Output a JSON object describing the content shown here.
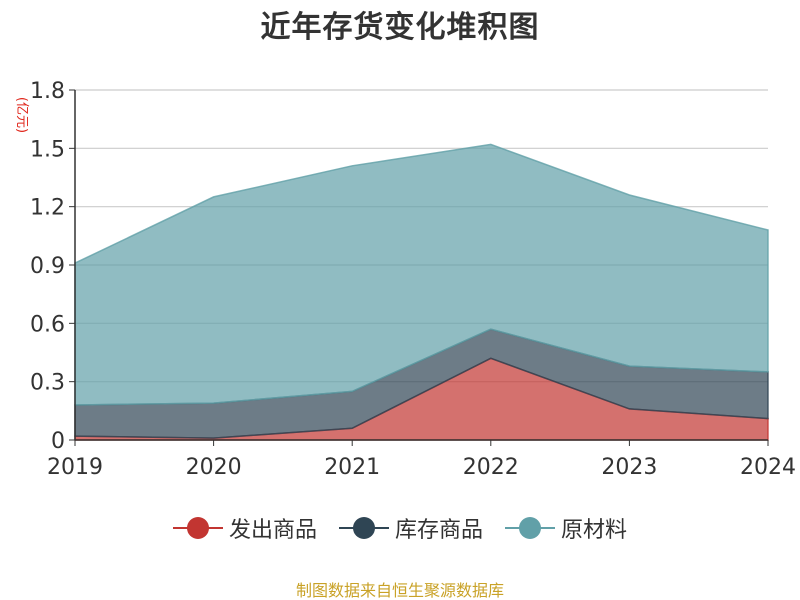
{
  "title": "近年存货变化堆积图",
  "source_text": "制图数据来自恒生聚源数据库",
  "chart_data": {
    "type": "area",
    "stacked": true,
    "title": "近年存货变化堆积图",
    "ylabel": "(亿元)",
    "xlabel": "",
    "categories": [
      "2019",
      "2020",
      "2021",
      "2022",
      "2023",
      "2024"
    ],
    "ylim": [
      0,
      1.8
    ],
    "yticks": [
      "0",
      "0.3",
      "0.6",
      "0.9",
      "1.2",
      "1.5",
      "1.8"
    ],
    "grid": true,
    "legend_position": "bottom",
    "series": [
      {
        "name": "发出商品",
        "color": "#c23531",
        "values": [
          0.02,
          0.01,
          0.06,
          0.42,
          0.16,
          0.11
        ]
      },
      {
        "name": "库存商品",
        "color": "#2f4554",
        "values": [
          0.16,
          0.18,
          0.19,
          0.15,
          0.22,
          0.24
        ]
      },
      {
        "name": "原材料",
        "color": "#61a0a8",
        "values": [
          0.73,
          1.06,
          1.16,
          0.95,
          0.88,
          0.73
        ]
      }
    ]
  }
}
